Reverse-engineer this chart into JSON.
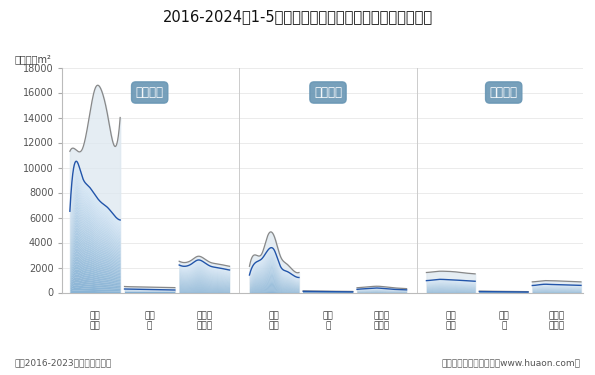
{
  "title": "2016-2024年1-5月新疆维吾尔自治区房地产施工面积情况",
  "unit_label": "单位：万m²",
  "note_left": "注：2016-2023年为全年度数据",
  "note_right": "制图：华经产业研究院（www.huaon.com）",
  "ylim": [
    0,
    18000
  ],
  "yticks": [
    0,
    2000,
    4000,
    6000,
    8000,
    10000,
    12000,
    14000,
    16000,
    18000
  ],
  "groups": [
    {
      "label": "施工面积",
      "subcategories": [
        "商品\n住宅",
        "办公\n楼",
        "商业营\n业用房"
      ],
      "outer": [
        [
          11300,
          11400,
          11500,
          13800,
          16300,
          16200,
          14200,
          11800,
          14000
        ],
        [
          480,
          460,
          450,
          440,
          430,
          420,
          410,
          400,
          390
        ],
        [
          2500,
          2400,
          2600,
          2900,
          2700,
          2400,
          2300,
          2200,
          2100
        ]
      ],
      "inner": [
        [
          6500,
          10500,
          9200,
          8500,
          7800,
          7200,
          6800,
          6200,
          5800
        ],
        [
          280,
          270,
          260,
          250,
          240,
          230,
          220,
          210,
          200
        ],
        [
          2200,
          2100,
          2300,
          2600,
          2400,
          2100,
          2000,
          1900,
          1800
        ]
      ]
    },
    {
      "label": "新开面积",
      "subcategories": [
        "商品\n住宅",
        "办公\n楼",
        "商业营\n业用房"
      ],
      "outer": [
        [
          2100,
          3000,
          3100,
          4600,
          4500,
          2900,
          2300,
          1800,
          1600
        ],
        [
          130,
          120,
          115,
          110,
          105,
          100,
          95,
          90,
          85
        ],
        [
          380,
          420,
          460,
          500,
          480,
          420,
          370,
          340,
          310
        ]
      ],
      "inner": [
        [
          1400,
          2400,
          2700,
          3400,
          3400,
          2100,
          1700,
          1400,
          1200
        ],
        [
          90,
          85,
          80,
          75,
          70,
          65,
          60,
          55,
          50
        ],
        [
          250,
          290,
          320,
          360,
          330,
          280,
          250,
          230,
          210
        ]
      ]
    },
    {
      "label": "竣工面积",
      "subcategories": [
        "商品\n住宅",
        "办公\n楼",
        "商业营\n业用房"
      ],
      "outer": [
        [
          1600,
          1650,
          1700,
          1700,
          1680,
          1640,
          1580,
          1530,
          1490
        ],
        [
          110,
          105,
          100,
          95,
          90,
          85,
          80,
          75,
          70
        ],
        [
          850,
          900,
          950,
          940,
          930,
          910,
          890,
          870,
          850
        ]
      ],
      "inner": [
        [
          950,
          1000,
          1050,
          1040,
          1020,
          990,
          960,
          930,
          900
        ],
        [
          75,
          70,
          65,
          60,
          55,
          50,
          45,
          42,
          38
        ],
        [
          560,
          610,
          660,
          645,
          630,
          615,
          600,
          585,
          570
        ]
      ]
    }
  ],
  "outer_fill_color": "#dde8f0",
  "outer_line_color": "#888888",
  "inner_fill_top": "#7aaad0",
  "inner_fill_bottom": "#daeaf8",
  "inner_line_color": "#2255aa",
  "label_box_color": "#6896b4",
  "label_text_color": "#ffffff",
  "background_color": "#ffffff",
  "grid_color": "#e8e8e8",
  "spine_color": "#bbbbbb",
  "tick_color": "#555555",
  "divider_color": "#cccccc"
}
